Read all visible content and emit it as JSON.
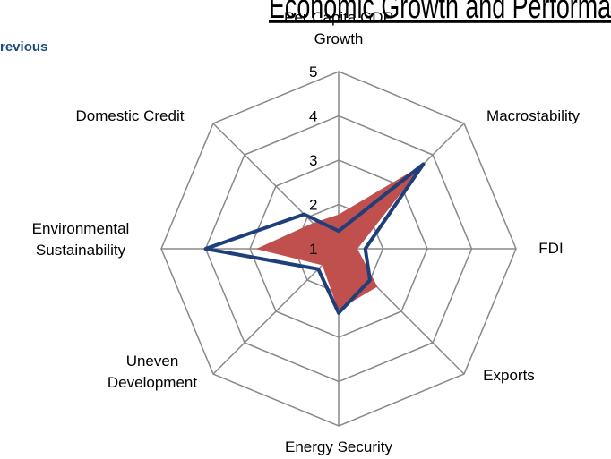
{
  "chart_data": {
    "type": "radar",
    "title": "Economic Growth and Performa",
    "categories": [
      "Per Capita GDP Growth",
      "Macrostability",
      "FDI",
      "Exports",
      "Energy Security",
      "Uneven Development",
      "Environmental Sustainability",
      "Domestic Credit"
    ],
    "series": [
      {
        "name": "revious",
        "color": "#1f3f7a",
        "style": "line",
        "values": [
          1.4,
          3.7,
          1.6,
          2.0,
          2.45,
          1.65,
          4.0,
          2.1
        ]
      },
      {
        "color": "#c0504d",
        "style": "area",
        "values": [
          1.75,
          3.6,
          1.4,
          2.2,
          2.35,
          1.5,
          2.8,
          1.8
        ]
      }
    ],
    "ylim": [
      1,
      5
    ],
    "yticks": [
      1,
      2,
      3,
      4,
      5
    ],
    "grid": true
  }
}
